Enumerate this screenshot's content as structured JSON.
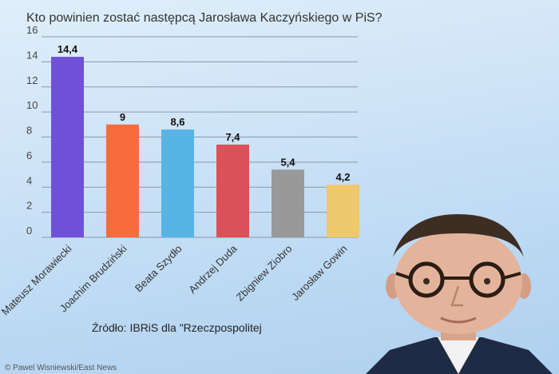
{
  "chart_data": {
    "type": "bar",
    "title": "Kto powinien zostać następcą Jarosława Kaczyńskiego w PiS?",
    "categories": [
      "Mateusz Morawiecki",
      "Joachim Brudziński",
      "Beata Szydło",
      "Andrzej Duda",
      "Zbigniew Ziobro",
      "Jarosław Gowin"
    ],
    "values": [
      14.4,
      9,
      8.6,
      7.4,
      5.4,
      4.2
    ],
    "value_labels": [
      "14,4",
      "9",
      "8,6",
      "7,4",
      "5,4",
      "4,2"
    ],
    "colors": [
      "#7050d8",
      "#f86c3c",
      "#58b4e4",
      "#dc5058",
      "#999999",
      "#eec86a"
    ],
    "ylim": [
      0,
      16
    ],
    "yticks": [
      "0",
      "2",
      "4",
      "6",
      "8",
      "10",
      "12",
      "14",
      "16"
    ],
    "xlabel": "",
    "ylabel": "",
    "grid": true,
    "source": "Źródło: IBRiS dla \"Rzeczpospolitej"
  },
  "photo_credit": "© Pawel Wisniewski/East News"
}
